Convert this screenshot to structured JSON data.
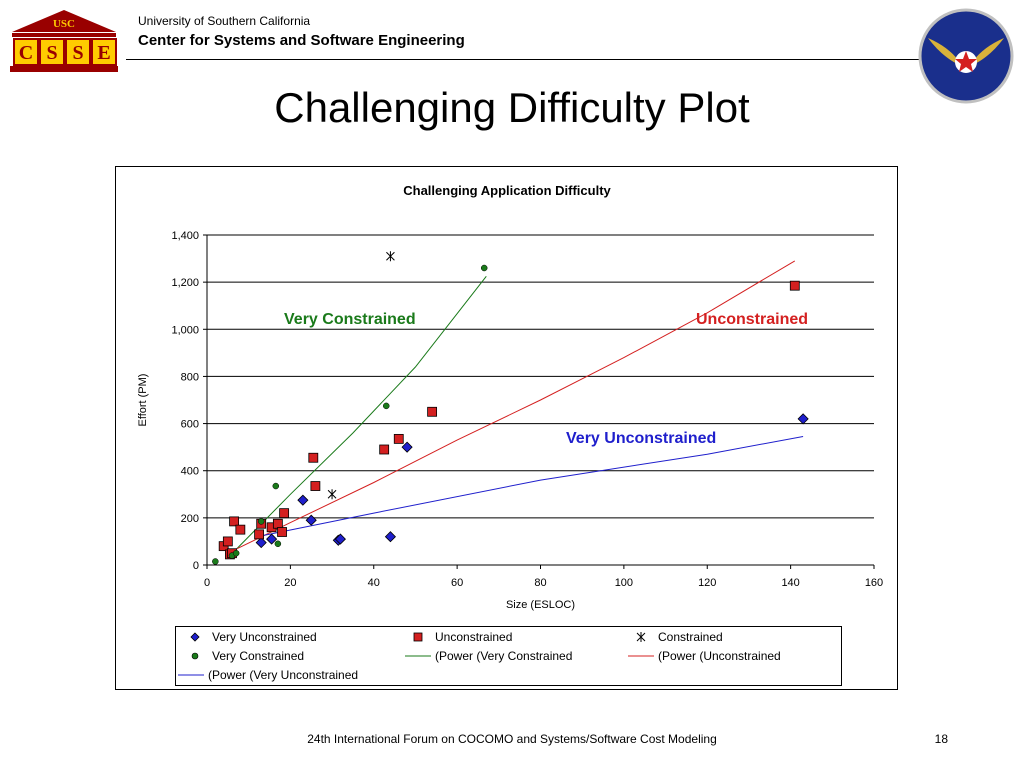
{
  "header": {
    "university": "University of Southern California",
    "center": "Center for Systems and Software Engineering",
    "logo_left_text": "USC",
    "logo_left_letters": "CSSE"
  },
  "slide": {
    "title": "Challenging Difficulty Plot",
    "footer": "24th International Forum on COCOMO and Systems/Software Cost Modeling",
    "page_number": "18"
  },
  "colors": {
    "very_unconstrained": "#1f1fcc",
    "unconstrained": "#d42020",
    "very_constrained": "#1a7a1a",
    "constrained": "#000000",
    "usc_red": "#990000",
    "usc_gold": "#ffcc00",
    "af_blue": "#1a2f8c"
  },
  "chart_data": {
    "type": "scatter",
    "title": "Challenging Application Difficulty",
    "xlabel": "Size (ESLOC)",
    "ylabel": "Effort (PM)",
    "xlim": [
      0,
      160
    ],
    "ylim": [
      0,
      1400
    ],
    "x_ticks": [
      0,
      20,
      40,
      60,
      80,
      100,
      120,
      140,
      160
    ],
    "y_ticks": [
      0,
      200,
      400,
      600,
      800,
      1000,
      1200,
      1400
    ],
    "x_tick_labels": [
      "0",
      "20",
      "40",
      "60",
      "80",
      "100",
      "120",
      "140",
      "160"
    ],
    "y_tick_labels": [
      "0",
      "200",
      "400",
      "600",
      "800",
      "1,000",
      "1,200",
      "1,400"
    ],
    "grid": "horizontal",
    "legend_position": "bottom",
    "series": [
      {
        "name": "Very Unconstrained",
        "marker": "diamond",
        "points": [
          [
            13,
            95
          ],
          [
            15.5,
            110
          ],
          [
            23,
            275
          ],
          [
            25,
            190
          ],
          [
            31.5,
            105
          ],
          [
            32,
            110
          ],
          [
            44,
            120
          ],
          [
            48,
            500
          ],
          [
            143,
            620
          ]
        ]
      },
      {
        "name": "Unconstrained",
        "marker": "square",
        "points": [
          [
            4,
            80
          ],
          [
            5,
            100
          ],
          [
            5.5,
            45
          ],
          [
            6,
            50
          ],
          [
            6.5,
            185
          ],
          [
            8,
            150
          ],
          [
            12.5,
            130
          ],
          [
            13,
            175
          ],
          [
            15.5,
            160
          ],
          [
            17,
            175
          ],
          [
            18,
            140
          ],
          [
            18.5,
            220
          ],
          [
            25.5,
            455
          ],
          [
            26,
            335
          ],
          [
            42.5,
            490
          ],
          [
            46,
            535
          ],
          [
            54,
            650
          ],
          [
            141,
            1185
          ]
        ]
      },
      {
        "name": "Constrained",
        "marker": "star",
        "points": [
          [
            44,
            1310
          ],
          [
            30,
            300
          ]
        ]
      },
      {
        "name": "Very Constrained",
        "marker": "circle",
        "points": [
          [
            2,
            15
          ],
          [
            6,
            40
          ],
          [
            7,
            50
          ],
          [
            13,
            185
          ],
          [
            16.5,
            335
          ],
          [
            17,
            90
          ],
          [
            43,
            675
          ],
          [
            66.5,
            1260
          ]
        ]
      }
    ],
    "trendlines": [
      {
        "name": "(Power (Very Constrained",
        "x_range": [
          5,
          67
        ],
        "curve": [
          [
            5,
            30
          ],
          [
            20,
            300
          ],
          [
            35,
            560
          ],
          [
            50,
            840
          ],
          [
            67,
            1225
          ]
        ]
      },
      {
        "name": "(Power (Unconstrained",
        "x_range": [
          5,
          141
        ],
        "curve": [
          [
            5,
            50
          ],
          [
            20,
            180
          ],
          [
            40,
            350
          ],
          [
            60,
            530
          ],
          [
            80,
            700
          ],
          [
            100,
            880
          ],
          [
            120,
            1070
          ],
          [
            141,
            1290
          ]
        ]
      },
      {
        "name": "(Power (Very Unconstrained",
        "x_range": [
          12,
          143
        ],
        "curve": [
          [
            12,
            120
          ],
          [
            40,
            220
          ],
          [
            80,
            360
          ],
          [
            120,
            470
          ],
          [
            143,
            545
          ]
        ]
      }
    ],
    "annotations": [
      {
        "text": "Very Constrained",
        "series": "Very Constrained"
      },
      {
        "text": "Unconstrained",
        "series": "Unconstrained"
      },
      {
        "text": "Very Unconstrained",
        "series": "Very Unconstrained"
      }
    ],
    "legend": [
      "Very Unconstrained",
      "Unconstrained",
      "Constrained",
      "Very Constrained",
      "(Power (Very Constrained",
      "(Power (Unconstrained",
      "(Power (Very Unconstrained"
    ]
  }
}
